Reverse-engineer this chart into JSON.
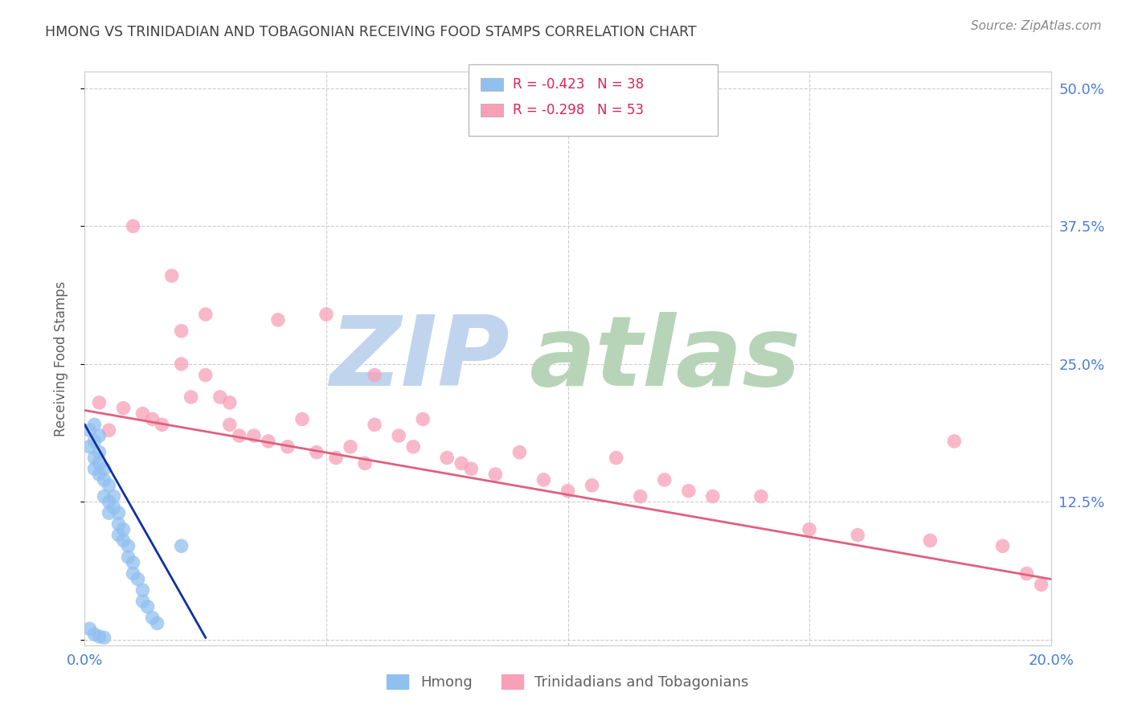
{
  "title": "HMONG VS TRINIDADIAN AND TOBAGONIAN RECEIVING FOOD STAMPS CORRELATION CHART",
  "source": "Source: ZipAtlas.com",
  "ylabel": "Receiving Food Stamps",
  "xmin": 0.0,
  "xmax": 0.2,
  "ymin": -0.005,
  "ymax": 0.515,
  "yticks": [
    0.0,
    0.125,
    0.25,
    0.375,
    0.5
  ],
  "ytick_labels": [
    "",
    "12.5%",
    "25.0%",
    "37.5%",
    "50.0%"
  ],
  "xticks": [
    0.0,
    0.05,
    0.1,
    0.15,
    0.2
  ],
  "xtick_labels": [
    "0.0%",
    "",
    "",
    "",
    "20.0%"
  ],
  "hmong_color": "#90c0f0",
  "trini_color": "#f8a0b8",
  "hmong_line_color": "#1030a0",
  "trini_line_color": "#e06080",
  "watermark_zip_color": "#c0d4ee",
  "watermark_atlas_color": "#b8d4b8",
  "background_color": "#ffffff",
  "grid_color": "#cccccc",
  "title_color": "#404040",
  "axis_label_color": "#606060",
  "tick_label_color": "#4a7fd4",
  "legend_text_color": "#dd2255",
  "hmong_R": -0.423,
  "hmong_N": 38,
  "trini_R": -0.298,
  "trini_N": 53,
  "hmong_scatter_x": [
    0.001,
    0.001,
    0.002,
    0.002,
    0.002,
    0.002,
    0.003,
    0.003,
    0.003,
    0.003,
    0.004,
    0.004,
    0.004,
    0.005,
    0.005,
    0.005,
    0.006,
    0.006,
    0.007,
    0.007,
    0.007,
    0.008,
    0.008,
    0.009,
    0.009,
    0.01,
    0.01,
    0.011,
    0.012,
    0.012,
    0.013,
    0.014,
    0.015,
    0.02,
    0.001,
    0.002,
    0.003,
    0.004
  ],
  "hmong_scatter_y": [
    0.19,
    0.175,
    0.195,
    0.18,
    0.165,
    0.155,
    0.185,
    0.17,
    0.16,
    0.15,
    0.155,
    0.145,
    0.13,
    0.14,
    0.125,
    0.115,
    0.13,
    0.12,
    0.115,
    0.105,
    0.095,
    0.1,
    0.09,
    0.085,
    0.075,
    0.07,
    0.06,
    0.055,
    0.045,
    0.035,
    0.03,
    0.02,
    0.015,
    0.085,
    0.01,
    0.005,
    0.003,
    0.002
  ],
  "trini_scatter_x": [
    0.003,
    0.005,
    0.008,
    0.01,
    0.012,
    0.014,
    0.016,
    0.018,
    0.02,
    0.02,
    0.022,
    0.025,
    0.025,
    0.028,
    0.03,
    0.03,
    0.032,
    0.035,
    0.038,
    0.04,
    0.042,
    0.045,
    0.048,
    0.05,
    0.052,
    0.055,
    0.058,
    0.06,
    0.06,
    0.065,
    0.068,
    0.07,
    0.075,
    0.078,
    0.08,
    0.085,
    0.09,
    0.095,
    0.1,
    0.105,
    0.11,
    0.115,
    0.12,
    0.125,
    0.13,
    0.14,
    0.15,
    0.16,
    0.175,
    0.18,
    0.19,
    0.195,
    0.198
  ],
  "trini_scatter_y": [
    0.215,
    0.19,
    0.21,
    0.375,
    0.205,
    0.2,
    0.195,
    0.33,
    0.28,
    0.25,
    0.22,
    0.295,
    0.24,
    0.22,
    0.215,
    0.195,
    0.185,
    0.185,
    0.18,
    0.29,
    0.175,
    0.2,
    0.17,
    0.295,
    0.165,
    0.175,
    0.16,
    0.24,
    0.195,
    0.185,
    0.175,
    0.2,
    0.165,
    0.16,
    0.155,
    0.15,
    0.17,
    0.145,
    0.135,
    0.14,
    0.165,
    0.13,
    0.145,
    0.135,
    0.13,
    0.13,
    0.1,
    0.095,
    0.09,
    0.18,
    0.085,
    0.06,
    0.05
  ],
  "hmong_line_x0": 0.0,
  "hmong_line_x1": 0.025,
  "hmong_line_y0": 0.195,
  "hmong_line_y1": 0.002,
  "trini_line_x0": 0.0,
  "trini_line_x1": 0.2,
  "trini_line_y0": 0.208,
  "trini_line_y1": 0.055
}
